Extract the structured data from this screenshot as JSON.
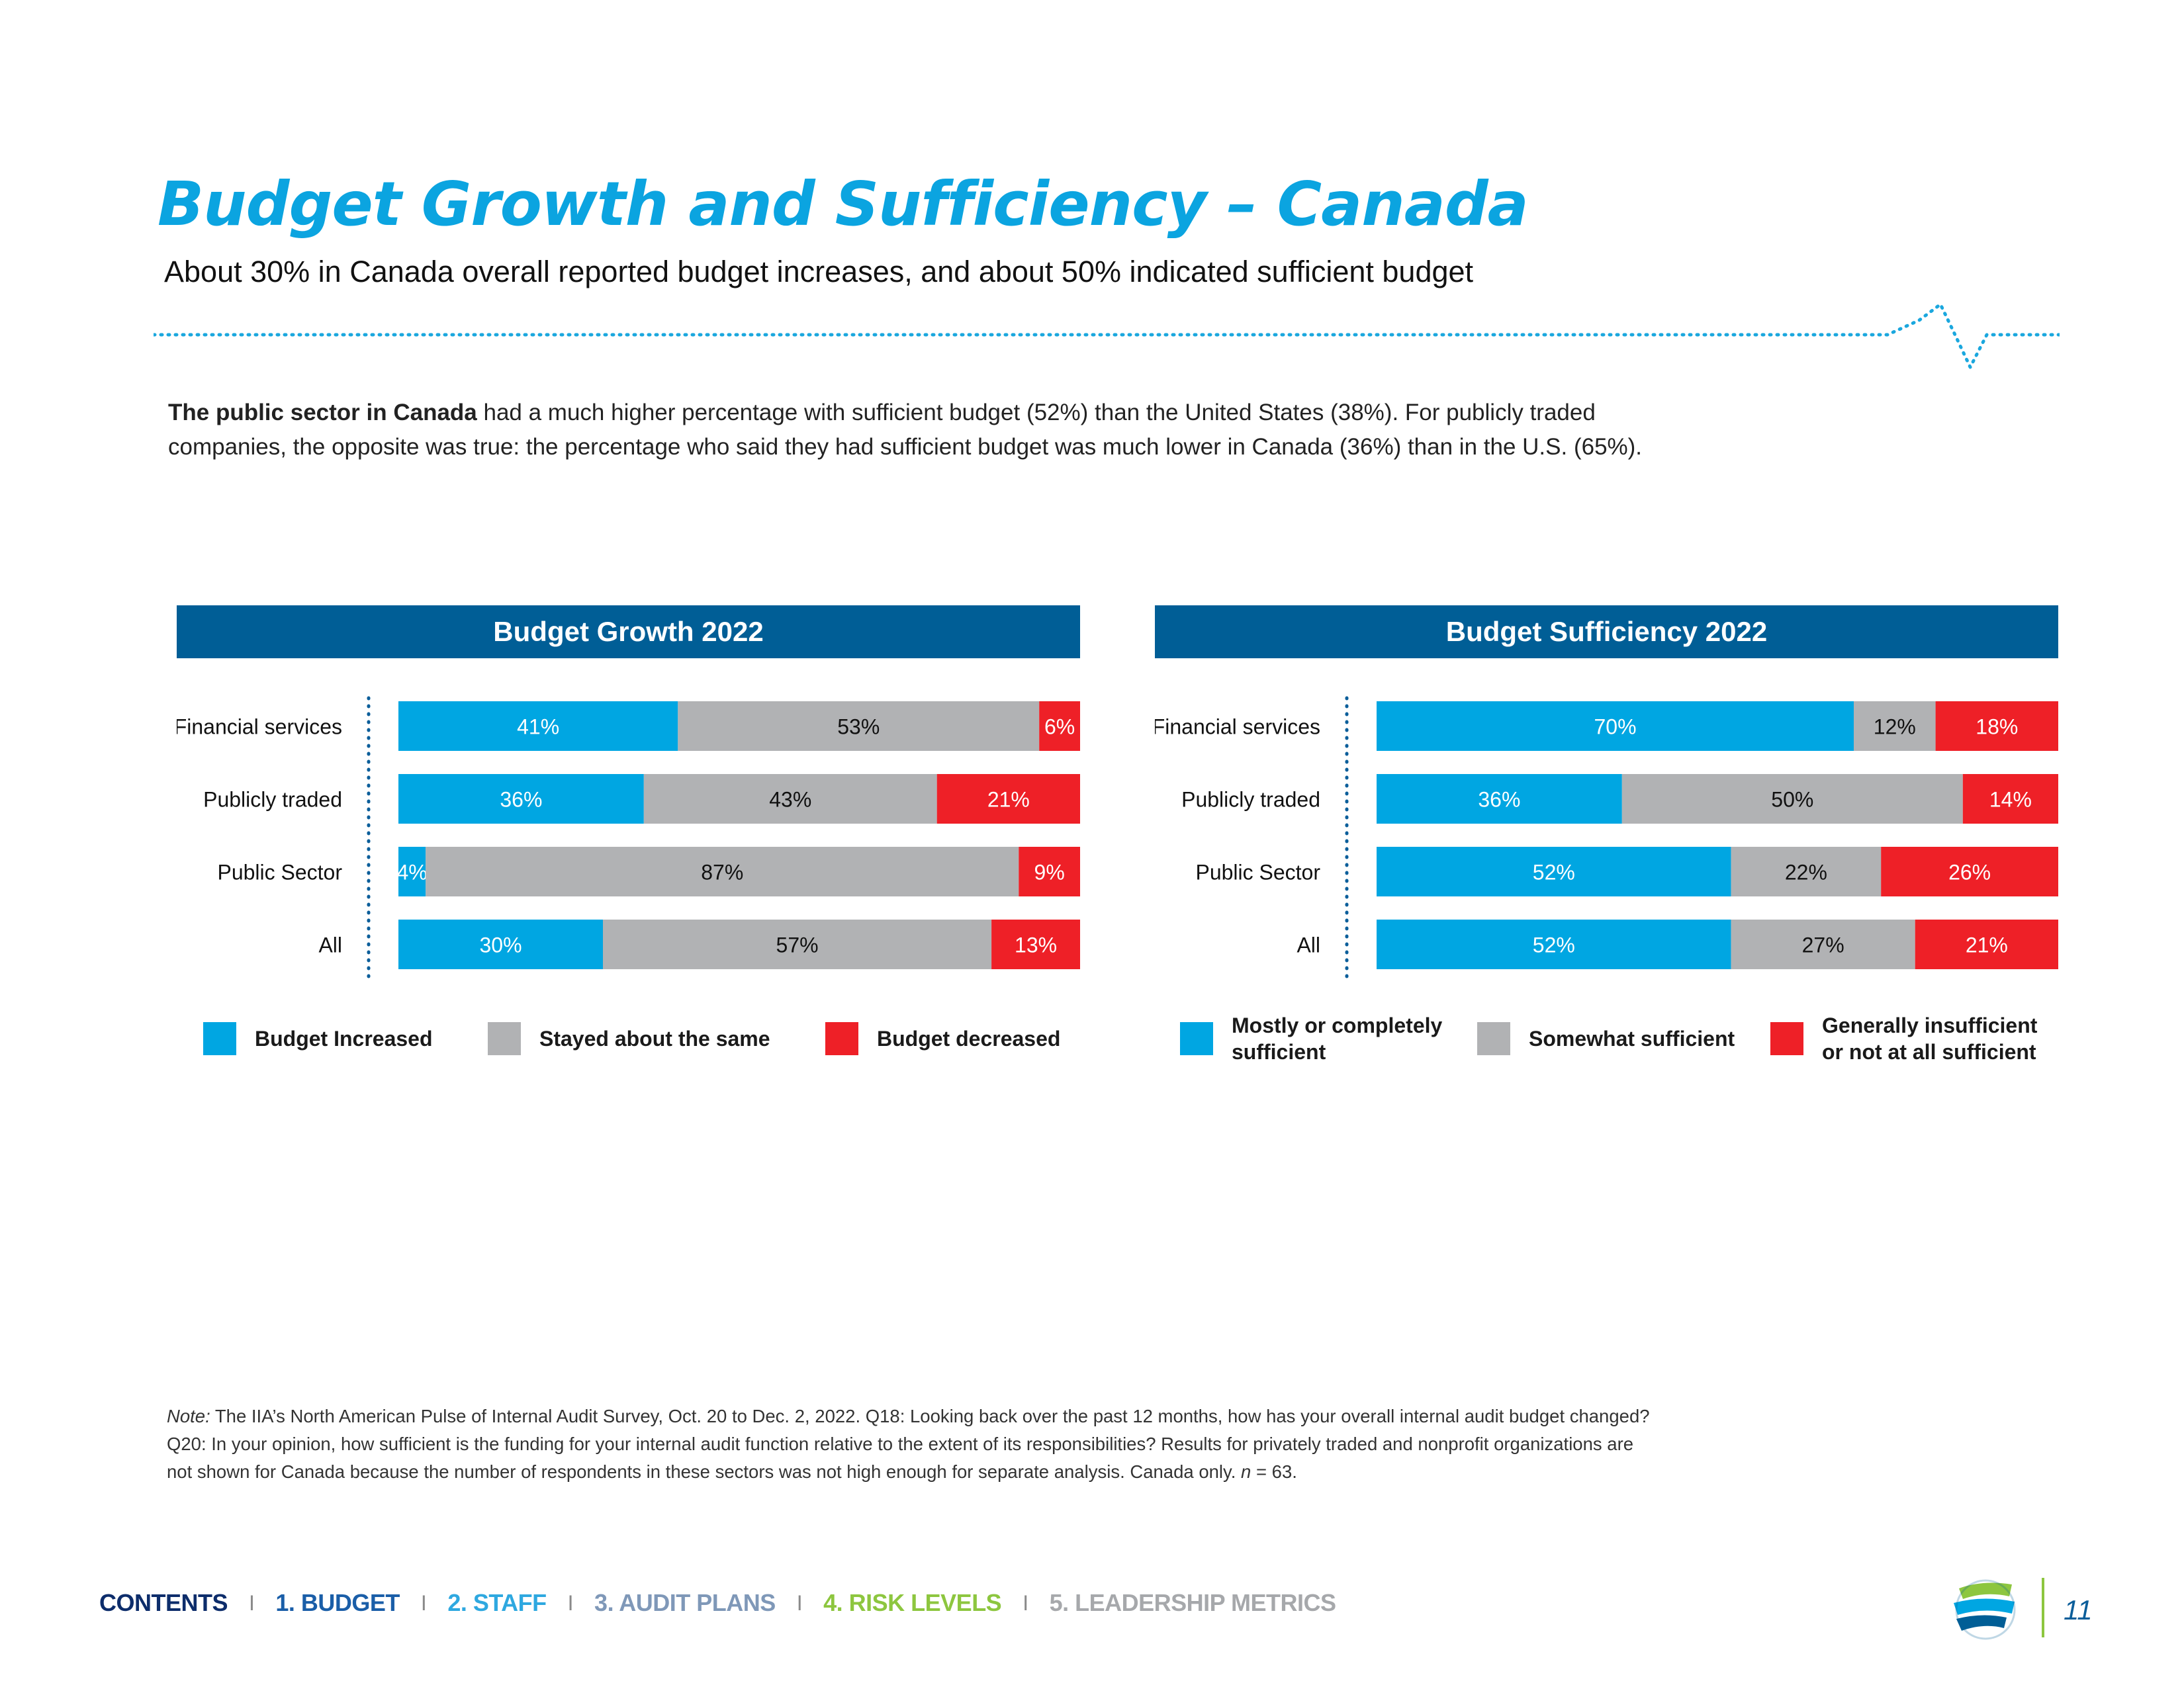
{
  "page": {
    "title": "Budget Growth and Sufficiency – Canada",
    "subtitle": "About 30% in Canada overall reported budget increases, and about 50% indicated sufficient budget",
    "intro_bold": "The public sector in Canada",
    "intro_rest": " had a much higher percentage with sufficient budget (52%) than the United States (38%). For publicly traded companies, the opposite was true: the percentage who said they had sufficient budget was much lower in Canada (36%) than in the U.S. (65%).",
    "note_label": "Note:",
    "note_text_1": " The IIA’s North American Pulse of Internal Audit Survey, Oct. 20 to Dec. 2, 2022. Q18: Looking back over the past 12 months, how has your overall internal audit budget changed? Q20: In your opinion, how sufficient is the funding for your internal audit function relative to the extent of its responsibilities? Results for privately traded and nonprofit organizations are not shown for Canada because the number of respondents in these sectors was not high enough for separate analysis. Canada only. ",
    "note_n": "n",
    "note_text_2": " = 63.",
    "page_number": "11"
  },
  "nav": [
    {
      "label": "CONTENTS",
      "color": "#0d2d6b"
    },
    {
      "label": "1. BUDGET",
      "color": "#1a5ea8"
    },
    {
      "label": "2. STAFF",
      "color": "#2ea8e0"
    },
    {
      "label": "3. AUDIT PLANS",
      "color": "#7f98b8"
    },
    {
      "label": "4. RISK LEVELS",
      "color": "#8dc63f"
    },
    {
      "label": "5. LEADERSHIP METRICS",
      "color": "#a6a8ab"
    }
  ],
  "nav_separator": "I",
  "colors": {
    "title": "#0ba4e0",
    "header": "#005e96",
    "blue": "#00a6e2",
    "gray": "#b1b2b4",
    "red": "#ee2027"
  },
  "chart_data": [
    {
      "type": "bar",
      "stacked": true,
      "orientation": "horizontal",
      "title": "Budget Growth 2022",
      "categories": [
        "Financial services",
        "Publicly traded",
        "Public Sector",
        "All"
      ],
      "series": [
        {
          "name": "Budget Increased",
          "color": "#00a6e2",
          "values": [
            41,
            36,
            4,
            30
          ],
          "labels": [
            "41%",
            "36%",
            "4%",
            "30%"
          ]
        },
        {
          "name": "Stayed about the same",
          "color": "#b1b2b4",
          "values": [
            53,
            43,
            87,
            57
          ],
          "labels": [
            "53%",
            "43%",
            "87%",
            "57%"
          ]
        },
        {
          "name": "Budget decreased",
          "color": "#ee2027",
          "values": [
            6,
            21,
            9,
            13
          ],
          "labels": [
            "6%",
            "21%",
            "9%",
            "13%"
          ]
        }
      ],
      "legend_position": "bottom",
      "grid": false
    },
    {
      "type": "bar",
      "stacked": true,
      "orientation": "horizontal",
      "title": "Budget Sufficiency 2022",
      "categories": [
        "Financial services",
        "Publicly traded",
        "Public Sector",
        "All"
      ],
      "series": [
        {
          "name": "Mostly or completely sufficient",
          "color": "#00a6e2",
          "values": [
            70,
            36,
            52,
            52
          ],
          "labels": [
            "70%",
            "36%",
            "52%",
            "52%"
          ]
        },
        {
          "name": "Somewhat sufficient",
          "color": "#b1b2b4",
          "values": [
            12,
            50,
            22,
            27
          ],
          "labels": [
            "12%",
            "50%",
            "22%",
            "27%"
          ]
        },
        {
          "name": "Generally insufficient or not at all sufficient",
          "color": "#ee2027",
          "values": [
            18,
            14,
            26,
            21
          ],
          "labels": [
            "18%",
            "14%",
            "26%",
            "21%"
          ]
        }
      ],
      "legend_position": "bottom",
      "grid": false
    }
  ]
}
